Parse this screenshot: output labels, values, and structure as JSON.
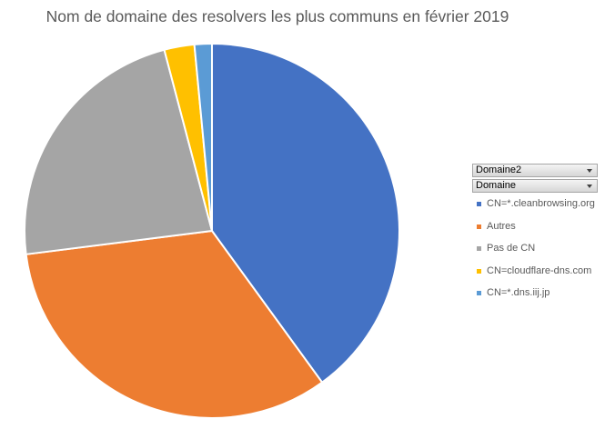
{
  "chart_data": {
    "type": "pie",
    "title": "Nom de domaine des resolvers les plus communs en février 2019",
    "categories": [
      "CN=*.cleanbrowsing.org",
      "Autres",
      "Pas de CN",
      "CN=cloudflare-dns.com",
      "CN=*.dns.iij.jp"
    ],
    "values": [
      40,
      33,
      22.9,
      2.6,
      1.5
    ],
    "colors": [
      "#4472C4",
      "#ED7D31",
      "#A5A5A5",
      "#FFC000",
      "#5B9BD5"
    ],
    "legend_position": "right",
    "start_angle_deg": 0,
    "direction": "clockwise"
  },
  "filters": {
    "field1_label": "Domaine2",
    "field2_label": "Domaine"
  }
}
